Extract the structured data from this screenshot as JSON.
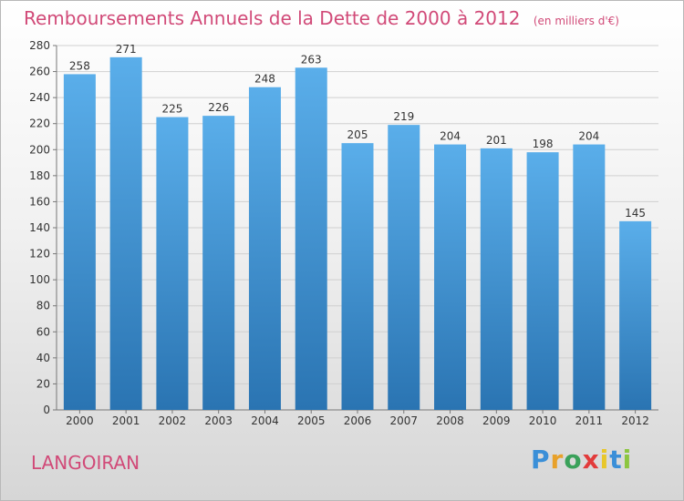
{
  "chart_data": {
    "type": "bar",
    "title": "Remboursements Annuels de la Dette de 2000 à 2012",
    "subtitle": "(en milliers d'€)",
    "categories": [
      "2000",
      "2001",
      "2002",
      "2003",
      "2004",
      "2005",
      "2006",
      "2007",
      "2008",
      "2009",
      "2010",
      "2011",
      "2012"
    ],
    "values": [
      258,
      271,
      225,
      226,
      248,
      263,
      205,
      219,
      204,
      201,
      198,
      204,
      145
    ],
    "ylim": [
      0,
      280
    ],
    "yticks": [
      0,
      20,
      40,
      60,
      80,
      100,
      120,
      140,
      160,
      180,
      200,
      220,
      240,
      260,
      280
    ],
    "grid": true,
    "bar_color_top": "#5aaeea",
    "bar_color_bottom": "#2a74b2"
  },
  "footer": {
    "place": "LANGOIRAN"
  },
  "logo": {
    "letters": [
      "P",
      "r",
      "o",
      "x",
      "i",
      "t",
      "i"
    ],
    "colors": [
      "#3a8fd8",
      "#e8a12a",
      "#3aa15a",
      "#e23b3b",
      "#e8c72a",
      "#3a8fd8",
      "#8cc63f"
    ]
  }
}
